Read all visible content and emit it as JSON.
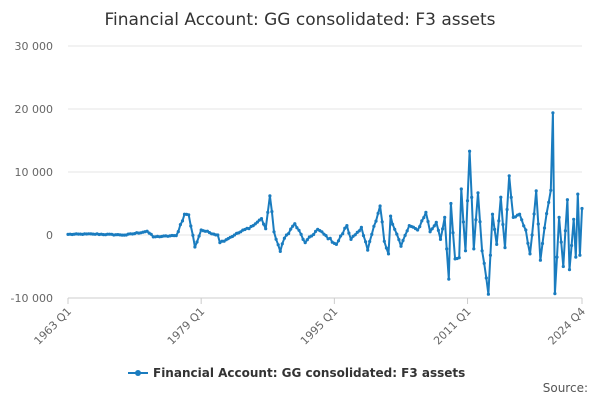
{
  "chart_data": {
    "type": "line",
    "title": "Financial Account: GG consolidated: F3 assets",
    "xlabel": "",
    "ylabel": "",
    "ylim": [
      -10000,
      30000
    ],
    "yticks": [
      -10000,
      0,
      10000,
      20000,
      30000
    ],
    "ytick_labels": [
      "-10 000",
      "0",
      "10 000",
      "20 000",
      "30 000"
    ],
    "xrange": [
      "1963 Q1",
      "2024 Q4"
    ],
    "xtick_labels": [
      "1963 Q1",
      "1979 Q1",
      "1995 Q1",
      "2011 Q1",
      "2024 Q4"
    ],
    "grid": "horizontal",
    "legend_position": "bottom",
    "color": "#1a7cbf",
    "series": [
      {
        "name": "Financial Account: GG consolidated: F3 assets",
        "keypoints": [
          [
            "1963 Q1",
            100
          ],
          [
            "1966 Q1",
            150
          ],
          [
            "1970 Q1",
            0
          ],
          [
            "1972 Q3",
            600
          ],
          [
            "1973 Q2",
            -300
          ],
          [
            "1976 Q1",
            -100
          ],
          [
            "1977 Q1",
            3300
          ],
          [
            "1977 Q3",
            3200
          ],
          [
            "1978 Q2",
            -1900
          ],
          [
            "1979 Q1",
            800
          ],
          [
            "1981 Q1",
            0
          ],
          [
            "1981 Q2",
            -1200
          ],
          [
            "1983 Q1",
            0
          ],
          [
            "1985 Q2",
            1500
          ],
          [
            "1986 Q2",
            2600
          ],
          [
            "1986 Q4",
            1000
          ],
          [
            "1987 Q2",
            6200
          ],
          [
            "1987 Q4",
            500
          ],
          [
            "1988 Q3",
            -2600
          ],
          [
            "1989 Q1",
            -500
          ],
          [
            "1990 Q2",
            1800
          ],
          [
            "1991 Q3",
            -1200
          ],
          [
            "1993 Q1",
            900
          ],
          [
            "1995 Q2",
            -1500
          ],
          [
            "1996 Q3",
            1500
          ],
          [
            "1997 Q1",
            -700
          ],
          [
            "1998 Q2",
            1200
          ],
          [
            "1999 Q1",
            -2400
          ],
          [
            "2000 Q1",
            2200
          ],
          [
            "2000 Q3",
            4600
          ],
          [
            "2001 Q1",
            -1000
          ],
          [
            "2001 Q3",
            -3000
          ],
          [
            "2001 Q4",
            3000
          ],
          [
            "2003 Q1",
            -1800
          ],
          [
            "2004 Q1",
            1500
          ],
          [
            "2005 Q1",
            800
          ],
          [
            "2006 Q1",
            3600
          ],
          [
            "2006 Q3",
            500
          ],
          [
            "2007 Q2",
            2000
          ],
          [
            "2007 Q4",
            -700
          ],
          [
            "2008 Q2",
            2800
          ],
          [
            "2008 Q4",
            -7000
          ],
          [
            "2009 Q1",
            5000
          ],
          [
            "2009 Q3",
            -3800
          ],
          [
            "2010 Q1",
            -3600
          ],
          [
            "2010 Q2",
            7300
          ],
          [
            "2010 Q4",
            -2500
          ],
          [
            "2011 Q2",
            13300
          ],
          [
            "2011 Q4",
            -2200
          ],
          [
            "2012 Q2",
            6700
          ],
          [
            "2012 Q4",
            -2500
          ],
          [
            "2013 Q3",
            -9400
          ],
          [
            "2014 Q1",
            3300
          ],
          [
            "2014 Q3",
            -1500
          ],
          [
            "2015 Q1",
            6000
          ],
          [
            "2015 Q3",
            -2000
          ],
          [
            "2016 Q1",
            9400
          ],
          [
            "2016 Q3",
            2800
          ],
          [
            "2017 Q2",
            3300
          ],
          [
            "2018 Q1",
            800
          ],
          [
            "2018 Q3",
            -3000
          ],
          [
            "2019 Q2",
            7000
          ],
          [
            "2019 Q4",
            -4000
          ],
          [
            "2020 Q3",
            3400
          ],
          [
            "2021 Q1",
            7100
          ],
          [
            "2021 Q2",
            19400
          ],
          [
            "2021 Q3",
            -9300
          ],
          [
            "2022 Q1",
            2800
          ],
          [
            "2022 Q3",
            -5000
          ],
          [
            "2023 Q1",
            5600
          ],
          [
            "2023 Q2",
            -5500
          ],
          [
            "2023 Q4",
            2500
          ],
          [
            "2024 Q1",
            -3500
          ],
          [
            "2024 Q2",
            6500
          ],
          [
            "2024 Q3",
            -3200
          ],
          [
            "2024 Q4",
            4200
          ]
        ]
      }
    ],
    "credit": "Source:"
  }
}
